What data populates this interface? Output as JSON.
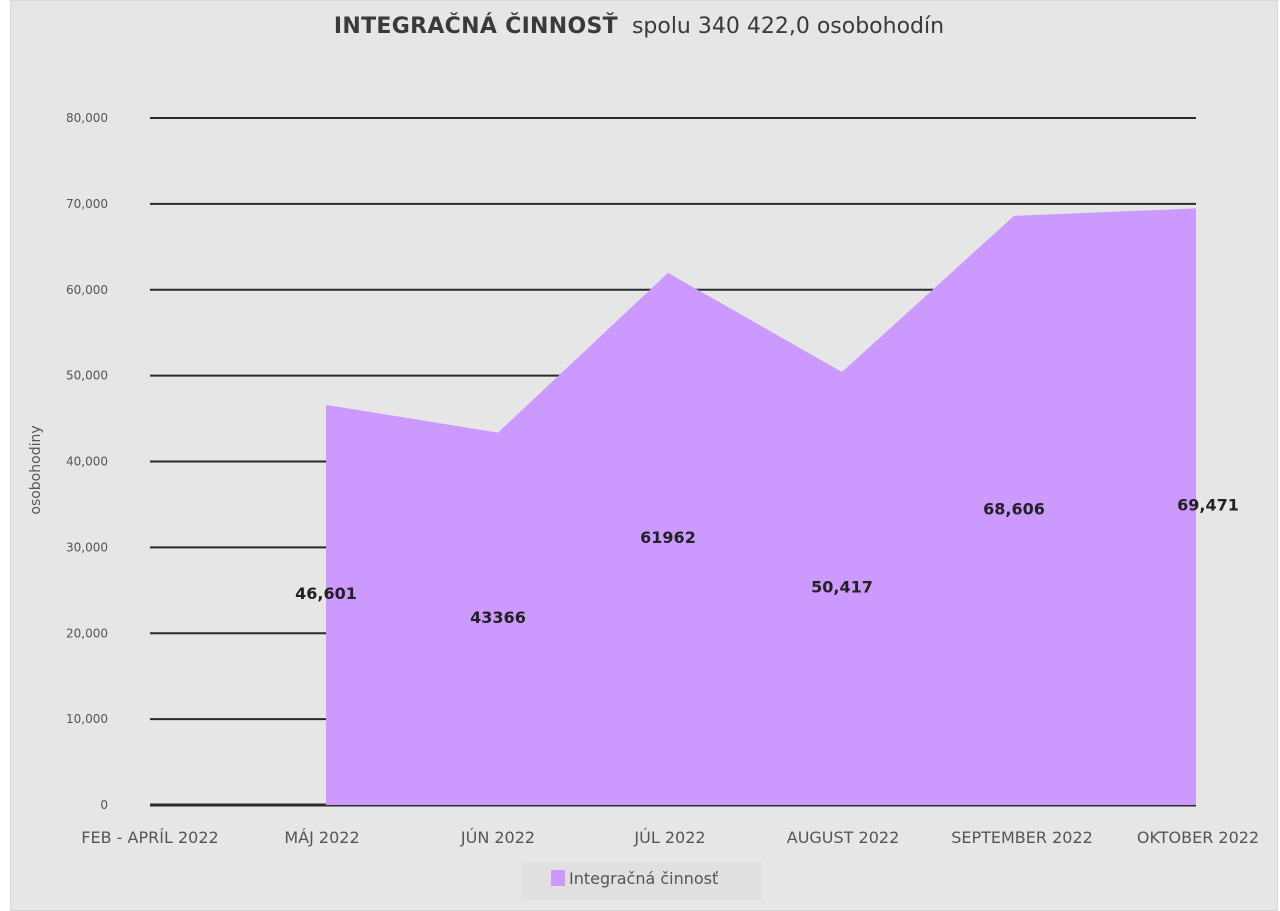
{
  "chart_data": {
    "type": "area",
    "title": "INTEGRAČNÁ ČINNOSŤ",
    "subtitle": "spolu 340 422,0 osobohodín",
    "xlabel": "",
    "ylabel": "osobohodiny",
    "ylim": [
      0,
      80000
    ],
    "y_ticks": [
      0,
      10000,
      20000,
      30000,
      40000,
      50000,
      60000,
      70000,
      80000
    ],
    "y_tick_labels": [
      "0",
      "10,000",
      "20,000",
      "30,000",
      "40,000",
      "50,000",
      "60,000",
      "70,000",
      "80,000"
    ],
    "grid": true,
    "legend_position": "bottom",
    "categories": [
      "FEB - APRÍL 2022",
      "MÁJ 2022",
      "JÚN 2022",
      "JÚL 2022",
      "AUGUST 2022",
      "SEPTEMBER 2022",
      "OKTOBER 2022"
    ],
    "series": [
      {
        "name": "Integračná činnosť",
        "color": "#cc99ff",
        "values": [
          0,
          46601,
          43366,
          61962,
          50417,
          68606,
          69471
        ],
        "data_labels": [
          "",
          "46,601",
          "43366",
          "61962",
          "50,417",
          "68,606",
          "69,471"
        ]
      }
    ]
  }
}
